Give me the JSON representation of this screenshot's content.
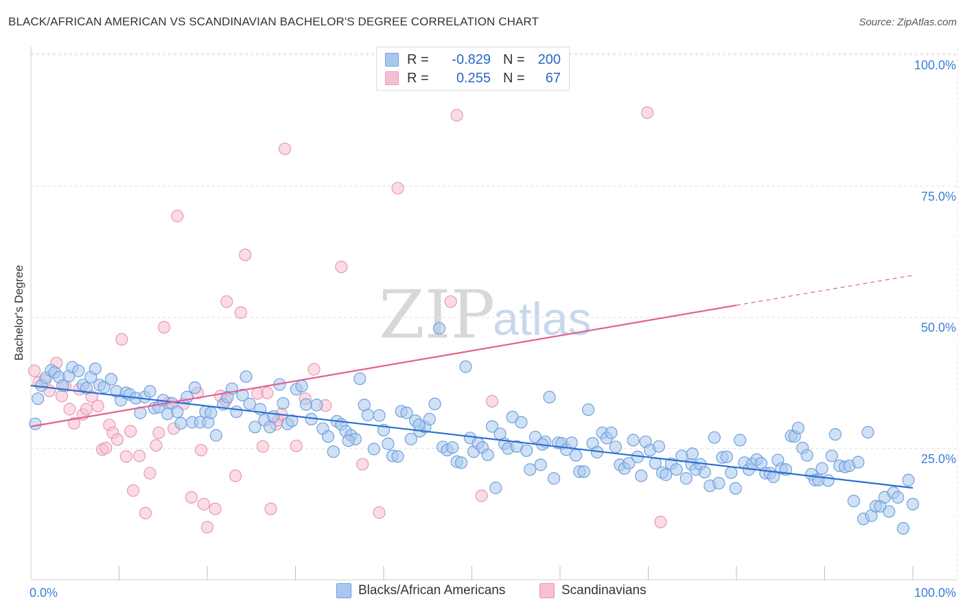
{
  "title": "BLACK/AFRICAN AMERICAN VS SCANDINAVIAN BACHELOR'S DEGREE CORRELATION CHART",
  "source": "Source: ZipAtlas.com",
  "watermark": {
    "zip": "ZIP",
    "atlas": "atlas"
  },
  "legend_top": [
    {
      "r_label": "R =",
      "r_value": "-0.829",
      "n_label": "N =",
      "n_value": "200"
    },
    {
      "r_label": "R =",
      "r_value": "0.255",
      "n_label": "N =",
      "n_value": "67"
    }
  ],
  "legend_bottom": [
    "Blacks/African Americans",
    "Scandinavians"
  ],
  "chart_data": {
    "type": "scatter",
    "title": "BLACK/AFRICAN AMERICAN VS SCANDINAVIAN BACHELOR'S DEGREE CORRELATION CHART",
    "xlabel": "",
    "ylabel": "Bachelor's Degree",
    "xlim": [
      0,
      100
    ],
    "ylim": [
      0,
      100
    ],
    "x_tick_labels": [
      "0.0%",
      "100.0%"
    ],
    "y_tick_labels": [
      "25.0%",
      "50.0%",
      "75.0%",
      "100.0%"
    ],
    "y_ticks": [
      25,
      50,
      75,
      100
    ],
    "grid": true,
    "legend_placement": "bottom",
    "colors": {
      "blue_fill": "#a9c8ef",
      "blue_stroke": "#6f9fdc",
      "blue_line": "#2a6dd0",
      "pink_fill": "#f7c0d1",
      "pink_stroke": "#e896b1",
      "pink_line": "#e0618e",
      "tick_label": "#3b7dd8"
    },
    "series": [
      {
        "name": "Blacks/African Americans",
        "color": "#a9c8ef",
        "trend": {
          "x": [
            0,
            100
          ],
          "y": [
            37.0,
            17.5
          ],
          "r": -0.829,
          "n": 200
        },
        "points": [
          [
            0.5,
            29.7
          ],
          [
            0.8,
            34.5
          ],
          [
            1.2,
            37.0
          ],
          [
            1.7,
            38.5
          ],
          [
            2.3,
            39.9
          ],
          [
            2.7,
            39.5
          ],
          [
            3.2,
            38.6
          ],
          [
            3.6,
            37.0
          ],
          [
            4.3,
            38.8
          ],
          [
            4.7,
            40.5
          ],
          [
            5.4,
            39.8
          ],
          [
            5.9,
            37.1
          ],
          [
            6.3,
            36.5
          ],
          [
            6.8,
            38.6
          ],
          [
            7.3,
            40.2
          ],
          [
            7.8,
            37.1
          ],
          [
            8.3,
            36.7
          ],
          [
            9.1,
            38.2
          ],
          [
            9.7,
            35.9
          ],
          [
            10.2,
            34.2
          ],
          [
            10.8,
            35.6
          ],
          [
            11.2,
            35.3
          ],
          [
            11.9,
            34.6
          ],
          [
            12.4,
            31.8
          ],
          [
            12.9,
            34.8
          ],
          [
            13.5,
            35.9
          ],
          [
            14.0,
            32.7
          ],
          [
            14.5,
            32.9
          ],
          [
            15.0,
            34.2
          ],
          [
            15.5,
            31.6
          ],
          [
            16.0,
            33.6
          ],
          [
            16.6,
            32.0
          ],
          [
            17.0,
            29.8
          ],
          [
            17.7,
            34.8
          ],
          [
            18.3,
            30.0
          ],
          [
            18.6,
            36.6
          ],
          [
            19.2,
            30.0
          ],
          [
            19.8,
            32.0
          ],
          [
            20.1,
            30.0
          ],
          [
            20.4,
            31.8
          ],
          [
            21.0,
            27.5
          ],
          [
            21.8,
            33.4
          ],
          [
            22.3,
            34.8
          ],
          [
            22.8,
            36.4
          ],
          [
            23.3,
            32.0
          ],
          [
            24.0,
            35.2
          ],
          [
            24.4,
            38.7
          ],
          [
            24.8,
            33.5
          ],
          [
            25.4,
            29.1
          ],
          [
            26.0,
            32.5
          ],
          [
            26.5,
            30.4
          ],
          [
            27.1,
            29.1
          ],
          [
            27.5,
            31.1
          ],
          [
            28.2,
            37.2
          ],
          [
            28.6,
            33.6
          ],
          [
            29.1,
            29.7
          ],
          [
            29.6,
            30.3
          ],
          [
            30.1,
            36.3
          ],
          [
            30.7,
            36.9
          ],
          [
            31.2,
            33.4
          ],
          [
            31.8,
            30.6
          ],
          [
            32.4,
            33.3
          ],
          [
            33.1,
            28.8
          ],
          [
            33.7,
            27.3
          ],
          [
            34.3,
            24.4
          ],
          [
            34.7,
            30.2
          ],
          [
            35.2,
            29.6
          ],
          [
            35.7,
            28.3
          ],
          [
            36.3,
            27.5
          ],
          [
            36.8,
            26.8
          ],
          [
            37.3,
            38.3
          ],
          [
            37.8,
            33.3
          ],
          [
            38.2,
            31.4
          ],
          [
            38.9,
            24.9
          ],
          [
            39.5,
            31.3
          ],
          [
            40.0,
            28.5
          ],
          [
            40.5,
            25.9
          ],
          [
            41.0,
            23.6
          ],
          [
            41.6,
            23.5
          ],
          [
            42.0,
            32.1
          ],
          [
            42.6,
            31.8
          ],
          [
            43.1,
            26.8
          ],
          [
            43.6,
            30.3
          ],
          [
            44.1,
            28.3
          ],
          [
            44.7,
            29.1
          ],
          [
            45.2,
            30.6
          ],
          [
            45.8,
            33.5
          ],
          [
            46.3,
            47.9
          ],
          [
            46.7,
            25.3
          ],
          [
            47.2,
            24.7
          ],
          [
            47.8,
            25.2
          ],
          [
            48.3,
            22.5
          ],
          [
            48.8,
            22.3
          ],
          [
            49.3,
            40.6
          ],
          [
            49.8,
            27.0
          ],
          [
            50.2,
            24.4
          ],
          [
            50.7,
            26.0
          ],
          [
            51.2,
            25.2
          ],
          [
            51.8,
            23.8
          ],
          [
            52.3,
            29.2
          ],
          [
            52.7,
            17.5
          ],
          [
            53.2,
            27.8
          ],
          [
            53.7,
            25.9
          ],
          [
            54.1,
            25.0
          ],
          [
            54.6,
            31.0
          ],
          [
            55.1,
            25.4
          ],
          [
            55.6,
            30.0
          ],
          [
            56.2,
            24.6
          ],
          [
            56.6,
            21.0
          ],
          [
            57.2,
            27.2
          ],
          [
            57.8,
            21.9
          ],
          [
            58.3,
            26.3
          ],
          [
            58.8,
            34.8
          ],
          [
            59.3,
            19.3
          ],
          [
            59.8,
            26.1
          ],
          [
            60.2,
            26.0
          ],
          [
            60.7,
            24.8
          ],
          [
            61.3,
            26.1
          ],
          [
            61.8,
            23.7
          ],
          [
            62.2,
            20.6
          ],
          [
            62.7,
            20.6
          ],
          [
            63.2,
            32.4
          ],
          [
            63.7,
            26.0
          ],
          [
            64.2,
            24.3
          ],
          [
            64.8,
            28.0
          ],
          [
            65.3,
            27.0
          ],
          [
            65.8,
            28.0
          ],
          [
            66.3,
            25.3
          ],
          [
            66.8,
            21.9
          ],
          [
            67.3,
            21.2
          ],
          [
            67.8,
            22.2
          ],
          [
            68.3,
            26.6
          ],
          [
            68.8,
            23.4
          ],
          [
            69.2,
            19.8
          ],
          [
            69.7,
            26.3
          ],
          [
            70.2,
            24.7
          ],
          [
            70.8,
            22.2
          ],
          [
            71.2,
            25.4
          ],
          [
            71.6,
            20.4
          ],
          [
            72.0,
            20.0
          ],
          [
            72.6,
            22.1
          ],
          [
            73.2,
            21.0
          ],
          [
            73.8,
            23.6
          ],
          [
            74.3,
            19.3
          ],
          [
            74.9,
            22.0
          ],
          [
            75.4,
            21.0
          ],
          [
            75.9,
            22.0
          ],
          [
            76.4,
            20.5
          ],
          [
            77.0,
            17.9
          ],
          [
            77.5,
            27.1
          ],
          [
            78.0,
            18.4
          ],
          [
            78.4,
            23.3
          ],
          [
            78.9,
            23.4
          ],
          [
            79.4,
            20.4
          ],
          [
            79.9,
            17.4
          ],
          [
            80.4,
            26.6
          ],
          [
            80.9,
            22.3
          ],
          [
            81.4,
            21.0
          ],
          [
            81.8,
            22.1
          ],
          [
            82.3,
            22.9
          ],
          [
            82.8,
            22.2
          ],
          [
            83.3,
            20.3
          ],
          [
            83.8,
            20.3
          ],
          [
            84.2,
            19.6
          ],
          [
            84.7,
            22.8
          ],
          [
            85.1,
            21.2
          ],
          [
            85.6,
            21.0
          ],
          [
            86.2,
            27.4
          ],
          [
            86.6,
            27.3
          ],
          [
            87.0,
            28.9
          ],
          [
            87.5,
            25.1
          ],
          [
            88.0,
            23.7
          ],
          [
            88.5,
            20.1
          ],
          [
            88.9,
            19.0
          ],
          [
            89.3,
            19.0
          ],
          [
            89.7,
            21.2
          ],
          [
            90.4,
            18.9
          ],
          [
            90.8,
            23.6
          ],
          [
            91.2,
            27.7
          ],
          [
            91.7,
            21.7
          ],
          [
            92.3,
            21.5
          ],
          [
            92.8,
            21.7
          ],
          [
            93.3,
            15.0
          ],
          [
            93.8,
            22.4
          ],
          [
            94.4,
            11.6
          ],
          [
            94.9,
            28.1
          ],
          [
            95.3,
            12.2
          ],
          [
            95.8,
            14.0
          ],
          [
            96.3,
            14.0
          ],
          [
            96.8,
            15.7
          ],
          [
            97.3,
            13.0
          ],
          [
            97.8,
            16.6
          ],
          [
            98.3,
            15.7
          ],
          [
            98.9,
            9.8
          ],
          [
            99.5,
            19.0
          ],
          [
            100.0,
            14.4
          ],
          [
            44.0,
            29.5
          ],
          [
            58.0,
            25.8
          ],
          [
            36.0,
            26.5
          ],
          [
            75.0,
            24.0
          ]
        ]
      },
      {
        "name": "Scandinavians",
        "color": "#f7c0d1",
        "trend": {
          "x": [
            0,
            80
          ],
          "y": [
            29.2,
            52.3
          ],
          "r": 0.255,
          "n": 67,
          "dashed_extension": {
            "x": [
              80,
              100
            ],
            "y": [
              52.3,
              58.0
            ]
          }
        },
        "points": [
          [
            0.4,
            39.8
          ],
          [
            0.9,
            37.6
          ],
          [
            1.6,
            38.0
          ],
          [
            2.1,
            36.0
          ],
          [
            2.9,
            41.3
          ],
          [
            3.5,
            35.0
          ],
          [
            3.9,
            36.9
          ],
          [
            4.4,
            32.5
          ],
          [
            4.9,
            29.8
          ],
          [
            5.5,
            36.3
          ],
          [
            5.9,
            31.5
          ],
          [
            6.3,
            32.5
          ],
          [
            6.9,
            34.9
          ],
          [
            7.6,
            33.1
          ],
          [
            8.1,
            24.8
          ],
          [
            8.5,
            25.1
          ],
          [
            8.9,
            29.5
          ],
          [
            9.3,
            28.0
          ],
          [
            9.8,
            26.7
          ],
          [
            10.3,
            45.8
          ],
          [
            10.8,
            23.5
          ],
          [
            11.3,
            28.3
          ],
          [
            11.6,
            17.0
          ],
          [
            12.3,
            23.6
          ],
          [
            13.0,
            12.7
          ],
          [
            13.5,
            20.3
          ],
          [
            14.2,
            25.6
          ],
          [
            14.5,
            28.0
          ],
          [
            15.1,
            48.1
          ],
          [
            15.6,
            33.7
          ],
          [
            16.2,
            28.8
          ],
          [
            16.6,
            69.3
          ],
          [
            17.3,
            33.5
          ],
          [
            18.2,
            15.7
          ],
          [
            18.9,
            35.6
          ],
          [
            19.3,
            24.7
          ],
          [
            19.6,
            14.4
          ],
          [
            20.0,
            10.0
          ],
          [
            20.9,
            13.5
          ],
          [
            21.5,
            35.0
          ],
          [
            22.1,
            34.1
          ],
          [
            22.2,
            53.0
          ],
          [
            23.2,
            19.8
          ],
          [
            23.8,
            50.9
          ],
          [
            24.3,
            61.9
          ],
          [
            25.7,
            35.5
          ],
          [
            26.3,
            25.4
          ],
          [
            26.8,
            35.6
          ],
          [
            27.2,
            13.5
          ],
          [
            27.8,
            29.6
          ],
          [
            28.0,
            30.4
          ],
          [
            28.4,
            31.6
          ],
          [
            28.8,
            82.1
          ],
          [
            30.1,
            25.5
          ],
          [
            31.1,
            34.5
          ],
          [
            32.1,
            40.1
          ],
          [
            33.4,
            33.2
          ],
          [
            35.2,
            59.6
          ],
          [
            37.6,
            22.0
          ],
          [
            39.5,
            12.8
          ],
          [
            41.6,
            74.6
          ],
          [
            47.6,
            53.0
          ],
          [
            48.3,
            88.5
          ],
          [
            51.1,
            16.0
          ],
          [
            52.3,
            34.0
          ],
          [
            69.9,
            89.0
          ],
          [
            71.4,
            11.0
          ]
        ]
      }
    ]
  }
}
